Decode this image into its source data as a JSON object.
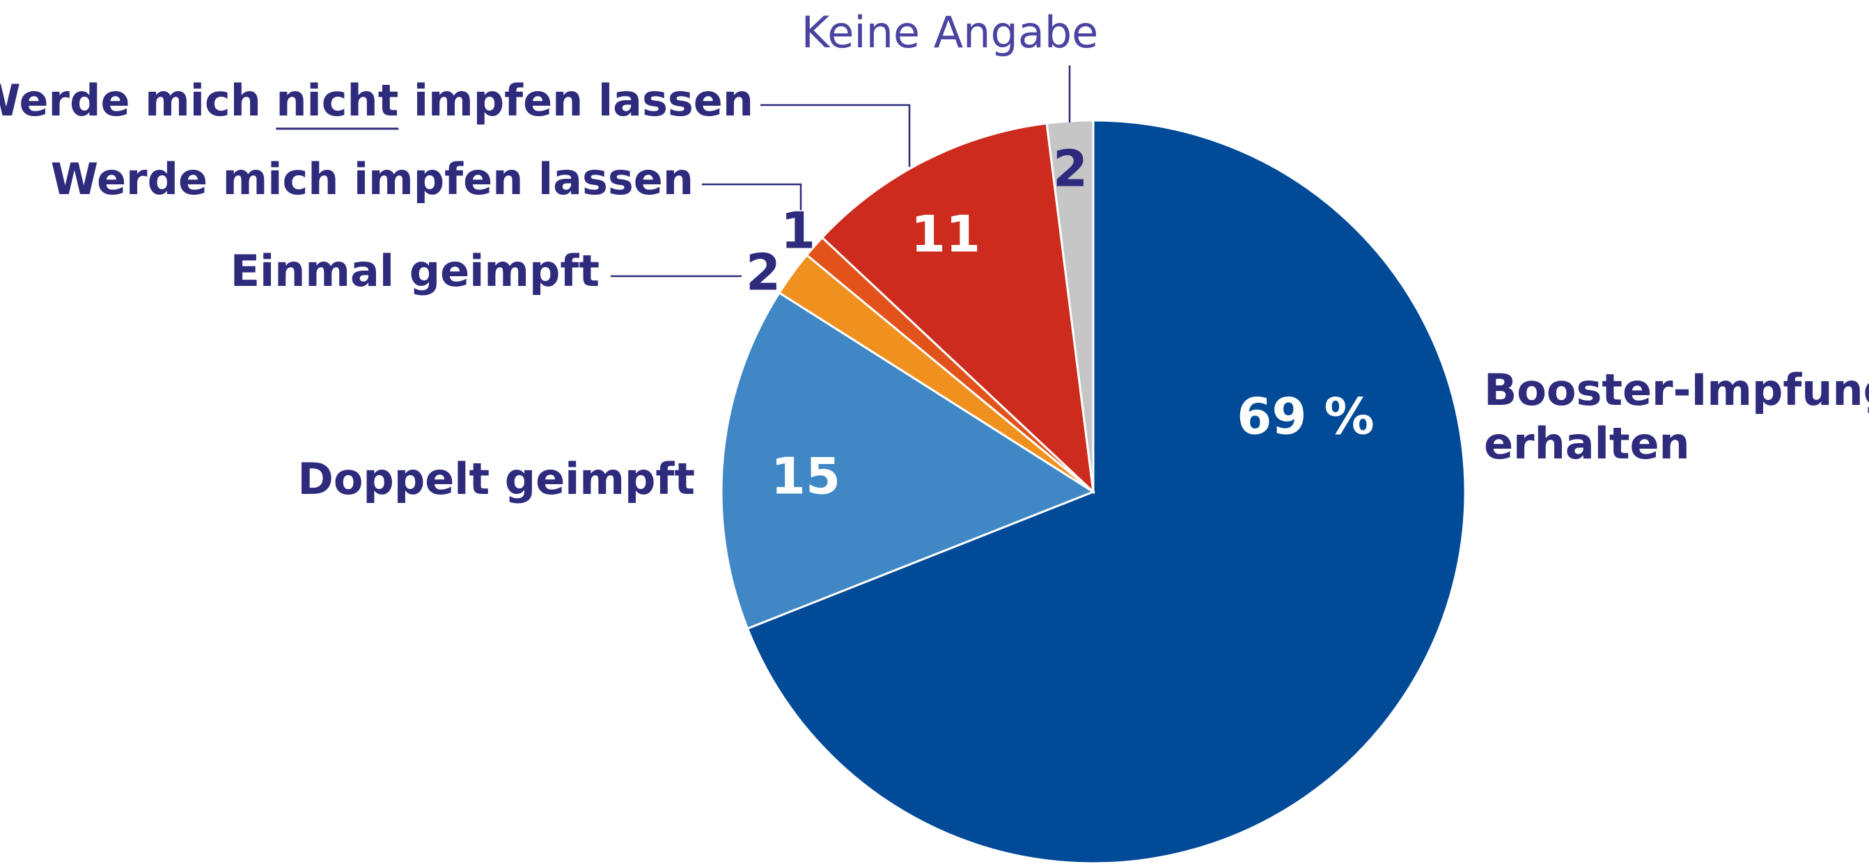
{
  "chart_data": {
    "type": "pie",
    "categories": [
      "Booster-Impfung\nerhalten",
      "Doppelt geimpft",
      "Einmal geimpft",
      "Werde mich impfen lassen",
      "Werde mich nicht impfen lassen",
      "Keine Angabe"
    ],
    "values": [
      69,
      15,
      2,
      1,
      11,
      2
    ],
    "value_labels": [
      "69 %",
      "15",
      "2",
      "1",
      "11",
      "2"
    ],
    "colors": [
      "#004a98",
      "#3f88c5",
      "#f0901e",
      "#e2531c",
      "#cc2b1d",
      "#c6c6c6"
    ]
  }
}
